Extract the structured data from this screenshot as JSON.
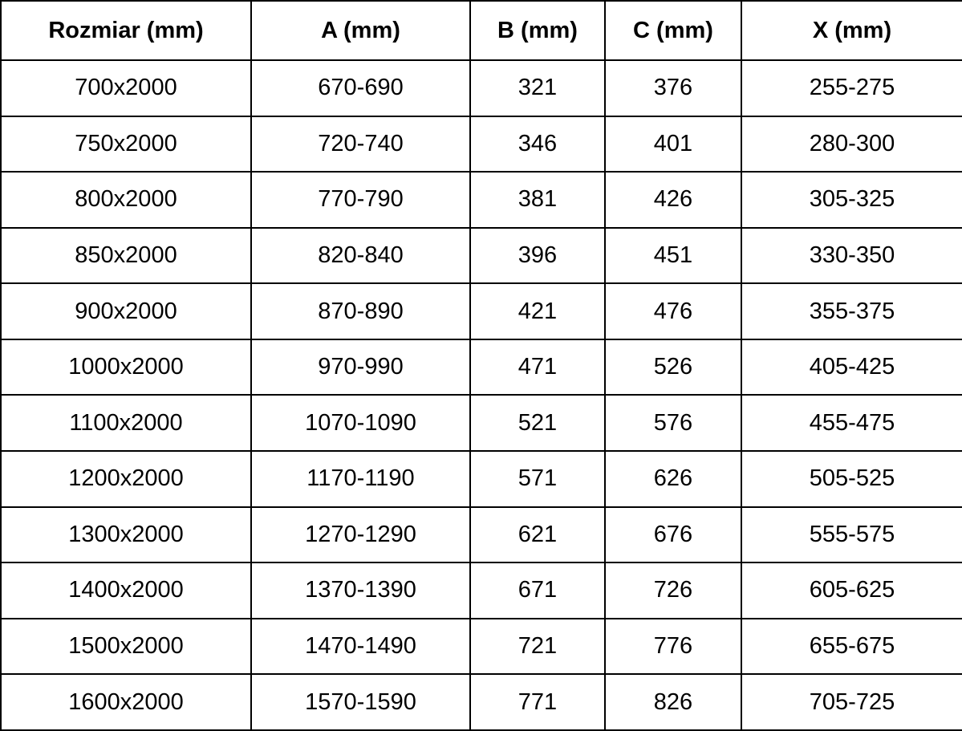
{
  "colors": {
    "background": "#ffffff",
    "border": "#000000",
    "text": "#000000"
  },
  "table": {
    "headers": [
      "Rozmiar (mm)",
      "A (mm)",
      "B (mm)",
      "C (mm)",
      "X (mm)"
    ],
    "rows": [
      [
        "700x2000",
        "670-690",
        "321",
        "376",
        "255-275"
      ],
      [
        "750x2000",
        "720-740",
        "346",
        "401",
        "280-300"
      ],
      [
        "800x2000",
        "770-790",
        "381",
        "426",
        "305-325"
      ],
      [
        "850x2000",
        "820-840",
        "396",
        "451",
        "330-350"
      ],
      [
        "900x2000",
        "870-890",
        "421",
        "476",
        "355-375"
      ],
      [
        "1000x2000",
        "970-990",
        "471",
        "526",
        "405-425"
      ],
      [
        "1100x2000",
        "1070-1090",
        "521",
        "576",
        "455-475"
      ],
      [
        "1200x2000",
        "1170-1190",
        "571",
        "626",
        "505-525"
      ],
      [
        "1300x2000",
        "1270-1290",
        "621",
        "676",
        "555-575"
      ],
      [
        "1400x2000",
        "1370-1390",
        "671",
        "726",
        "605-625"
      ],
      [
        "1500x2000",
        "1470-1490",
        "721",
        "776",
        "655-675"
      ],
      [
        "1600x2000",
        "1570-1590",
        "771",
        "826",
        "705-725"
      ]
    ]
  },
  "chart_data": {
    "type": "table",
    "title": "",
    "columns": [
      "Rozmiar (mm)",
      "A (mm)",
      "B (mm)",
      "C (mm)",
      "X (mm)"
    ],
    "rows": [
      [
        "700x2000",
        "670-690",
        321,
        376,
        "255-275"
      ],
      [
        "750x2000",
        "720-740",
        346,
        401,
        "280-300"
      ],
      [
        "800x2000",
        "770-790",
        381,
        426,
        "305-325"
      ],
      [
        "850x2000",
        "820-840",
        396,
        451,
        "330-350"
      ],
      [
        "900x2000",
        "870-890",
        421,
        476,
        "355-375"
      ],
      [
        "1000x2000",
        "970-990",
        471,
        526,
        "405-425"
      ],
      [
        "1100x2000",
        "1070-1090",
        521,
        576,
        "455-475"
      ],
      [
        "1200x2000",
        "1170-1190",
        571,
        626,
        "505-525"
      ],
      [
        "1300x2000",
        "1270-1290",
        621,
        676,
        "555-575"
      ],
      [
        "1400x2000",
        "1370-1390",
        671,
        726,
        "605-625"
      ],
      [
        "1500x2000",
        "1470-1490",
        721,
        776,
        "655-675"
      ],
      [
        "1600x2000",
        "1570-1590",
        771,
        826,
        "705-725"
      ]
    ]
  }
}
